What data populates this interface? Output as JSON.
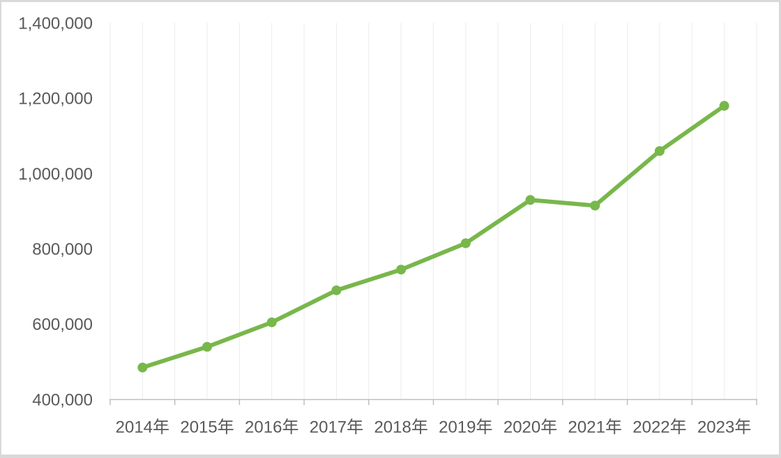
{
  "chart_data": {
    "type": "line",
    "categories": [
      "2014年",
      "2015年",
      "2016年",
      "2017年",
      "2018年",
      "2019年",
      "2020年",
      "2021年",
      "2022年",
      "2023年"
    ],
    "series": [
      {
        "name": "",
        "values": [
          485000,
          540000,
          605000,
          690000,
          745000,
          815000,
          930000,
          915000,
          1060000,
          1180000
        ]
      }
    ],
    "title": "",
    "xlabel": "",
    "ylabel": "",
    "ylim": [
      400000,
      1400000
    ],
    "ytick_interval": 200000,
    "ytick_labels": [
      "400,000",
      "600,000",
      "800,000",
      "1,000,000",
      "1,200,000",
      "1,400,000"
    ],
    "legend": "none",
    "grid": "vertical-half-category",
    "colors": {
      "line": "#78b74b",
      "marker": "#78b74b",
      "axis_text": "#595959",
      "gridline": "#ebebeb",
      "axis_line": "#bfbfbf",
      "tick": "#bfbfbf",
      "background": "#ffffff",
      "frame_border": "#d9d9d9"
    },
    "marker_style": "circle",
    "line_width": 6,
    "marker_radius": 7,
    "font_size": 24
  }
}
